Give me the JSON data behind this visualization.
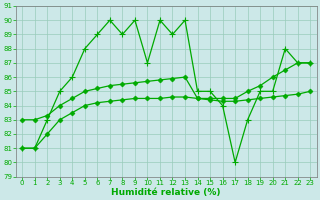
{
  "line1": [
    81,
    81,
    83,
    85,
    86,
    88,
    89,
    90,
    89,
    90,
    87,
    90,
    89,
    90,
    85,
    85,
    84,
    80,
    83,
    85,
    85,
    88,
    87,
    87
  ],
  "line2": [
    83,
    83,
    83.3,
    84,
    84.5,
    85,
    85.2,
    85.4,
    85.5,
    85.6,
    85.7,
    85.8,
    85.9,
    86.0,
    84.5,
    84.5,
    84.5,
    84.5,
    85.0,
    85.4,
    86.0,
    86.5,
    87.0,
    87.0
  ],
  "line3": [
    81,
    81,
    82,
    83,
    83.5,
    84,
    84.2,
    84.3,
    84.4,
    84.5,
    84.5,
    84.5,
    84.6,
    84.6,
    84.5,
    84.4,
    84.3,
    84.3,
    84.4,
    84.5,
    84.6,
    84.7,
    84.8,
    85.0
  ],
  "x": [
    0,
    1,
    2,
    3,
    4,
    5,
    6,
    7,
    8,
    9,
    10,
    11,
    12,
    13,
    14,
    15,
    16,
    17,
    18,
    19,
    20,
    21,
    22,
    23
  ],
  "xlabel": "Humidité relative (%)",
  "ylim": [
    79,
    91
  ],
  "xlim": [
    -0.5,
    23.5
  ],
  "yticks": [
    79,
    80,
    81,
    82,
    83,
    84,
    85,
    86,
    87,
    88,
    89,
    90,
    91
  ],
  "xticks": [
    0,
    1,
    2,
    3,
    4,
    5,
    6,
    7,
    8,
    9,
    10,
    11,
    12,
    13,
    14,
    15,
    16,
    17,
    18,
    19,
    20,
    21,
    22,
    23
  ],
  "bg_color": "#cce8e8",
  "line_color": "#00aa00",
  "grid_color": "#99ccbb",
  "xlabel_color": "#00aa00",
  "markersize": 2.5,
  "linewidth": 0.9
}
